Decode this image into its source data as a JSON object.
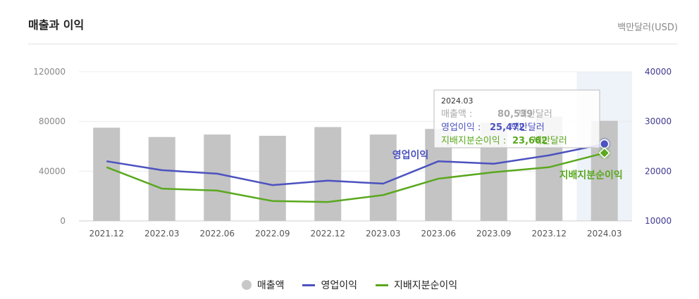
{
  "header": {
    "title": "매출과 이익",
    "unit": "백만달러(USD)"
  },
  "legend": {
    "revenue": "매출액",
    "op": "영업이익",
    "net": "지배지분순이익"
  },
  "tooltip": {
    "period": "2024.03",
    "rows": [
      {
        "label": "매출액",
        "value": "80,539",
        "unit": "백만달러"
      },
      {
        "label": "영업이익",
        "value": "25,472",
        "unit": "백만달러"
      },
      {
        "label": "지배지분순이익",
        "value": "23,662",
        "unit": "백만달러"
      }
    ]
  },
  "chart_data": {
    "type": "bar",
    "categories": [
      "2021.12",
      "2022.03",
      "2022.06",
      "2022.09",
      "2022.12",
      "2023.03",
      "2023.06",
      "2023.09",
      "2023.12",
      "2024.03"
    ],
    "left_axis": {
      "ticks": [
        0,
        40000,
        80000,
        120000
      ],
      "ylim": [
        0,
        120000
      ]
    },
    "right_axis": {
      "ticks": [
        10000,
        20000,
        30000,
        40000
      ],
      "ylim": [
        10000,
        40000
      ]
    },
    "series": [
      {
        "name": "매출액",
        "type": "bar",
        "axis": "left",
        "color": "#c4c4c4",
        "values": [
          75000,
          67500,
          69500,
          68500,
          75500,
          69500,
          74000,
          79000,
          84000,
          80539
        ]
      },
      {
        "name": "영업이익",
        "type": "line",
        "axis": "right",
        "color": "#4c52bf",
        "values": [
          22000,
          20200,
          19500,
          17200,
          18100,
          17500,
          22000,
          21500,
          23200,
          25472
        ]
      },
      {
        "name": "지배지분순이익",
        "type": "line",
        "axis": "right",
        "color": "#5aa81e",
        "values": [
          20800,
          16500,
          16100,
          14000,
          13800,
          15200,
          18500,
          19800,
          20800,
          23662
        ]
      }
    ],
    "annotations": [
      {
        "text": "영업이익",
        "series": "영업이익",
        "index": 6
      },
      {
        "text": "지배지분순이익",
        "series": "지배지분순이익",
        "index": 9
      }
    ],
    "highlight_index": 9,
    "grid": true
  }
}
